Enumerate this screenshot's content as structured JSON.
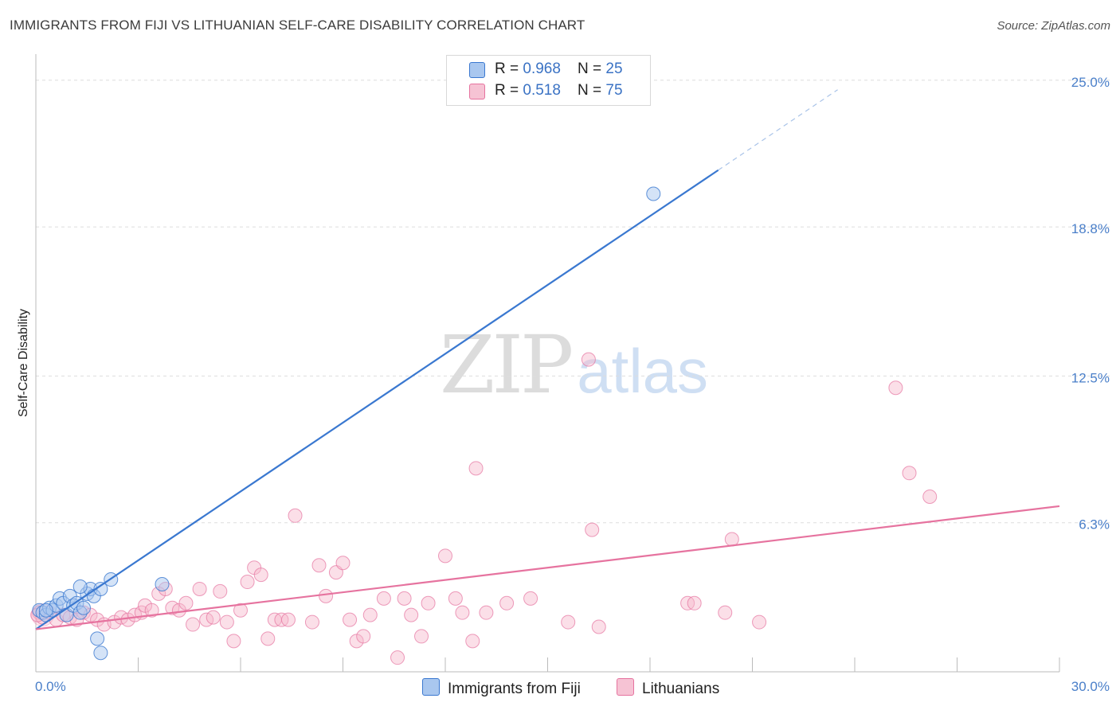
{
  "title": "IMMIGRANTS FROM FIJI VS LITHUANIAN SELF-CARE DISABILITY CORRELATION CHART",
  "source": "Source: ZipAtlas.com",
  "watermark": {
    "zip": "ZIP",
    "atlas": "atlas"
  },
  "legend": {
    "series1": {
      "r_label": "R = ",
      "r_value": "0.968",
      "n_label": "N = ",
      "n_value": "25"
    },
    "series2": {
      "r_label": "R = ",
      "r_value": "0.518",
      "n_label": "N = ",
      "n_value": "75"
    }
  },
  "chart_data": {
    "type": "scatter",
    "title": "IMMIGRANTS FROM FIJI VS LITHUANIAN SELF-CARE DISABILITY CORRELATION CHART",
    "xlabel": "",
    "ylabel": "Self-Care Disability",
    "xlim": [
      0,
      30
    ],
    "ylim": [
      0,
      25.7
    ],
    "x_tick_labels": [
      "0.0%",
      "30.0%"
    ],
    "y_ticks": [
      6.3,
      12.5,
      18.8,
      25.0
    ],
    "y_tick_labels": [
      "6.3%",
      "12.5%",
      "18.8%",
      "25.0%"
    ],
    "grid": true,
    "colors": {
      "fiji": "#3a78d0",
      "fiji_fill": "#a9c7ef",
      "lith": "#e6739f",
      "lith_fill": "#f6b9cd",
      "tick_text": "#4a7fc9"
    },
    "series": [
      {
        "name": "Immigrants from Fiji",
        "color": "#3a78d0",
        "trendline": {
          "x0": 0,
          "y0": 1.8,
          "x1": 20.0,
          "y1": 21.2,
          "dashed_to_x": 23.5,
          "dashed_to_y": 24.6
        },
        "points": [
          [
            0.1,
            2.6
          ],
          [
            0.2,
            2.5
          ],
          [
            0.3,
            2.4
          ],
          [
            0.4,
            2.7
          ],
          [
            0.5,
            2.6
          ],
          [
            0.6,
            2.8
          ],
          [
            0.7,
            3.1
          ],
          [
            0.8,
            2.9
          ],
          [
            0.9,
            2.4
          ],
          [
            1.0,
            3.2
          ],
          [
            1.1,
            2.8
          ],
          [
            1.2,
            2.9
          ],
          [
            1.3,
            2.5
          ],
          [
            1.4,
            2.7
          ],
          [
            1.5,
            3.3
          ],
          [
            1.6,
            3.5
          ],
          [
            1.7,
            3.2
          ],
          [
            1.9,
            3.5
          ],
          [
            2.2,
            3.9
          ],
          [
            1.8,
            1.4
          ],
          [
            1.9,
            0.8
          ],
          [
            3.7,
            3.7
          ],
          [
            1.3,
            3.6
          ],
          [
            0.3,
            2.6
          ],
          [
            18.1,
            20.2
          ]
        ]
      },
      {
        "name": "Lithuanians",
        "color": "#e6739f",
        "trendline": {
          "x0": 0,
          "y0": 1.8,
          "x1": 30.0,
          "y1": 7.0
        },
        "points": [
          [
            0.1,
            2.5
          ],
          [
            0.2,
            2.3
          ],
          [
            0.4,
            2.5
          ],
          [
            0.6,
            2.2
          ],
          [
            0.8,
            2.4
          ],
          [
            1.0,
            2.3
          ],
          [
            1.2,
            2.2
          ],
          [
            1.4,
            2.5
          ],
          [
            1.6,
            2.4
          ],
          [
            1.8,
            2.2
          ],
          [
            2.0,
            2.0
          ],
          [
            2.3,
            2.1
          ],
          [
            2.5,
            2.3
          ],
          [
            2.7,
            2.2
          ],
          [
            2.9,
            2.4
          ],
          [
            3.1,
            2.5
          ],
          [
            3.2,
            2.8
          ],
          [
            3.4,
            2.6
          ],
          [
            3.6,
            3.3
          ],
          [
            3.8,
            3.5
          ],
          [
            4.0,
            2.7
          ],
          [
            4.2,
            2.6
          ],
          [
            4.4,
            2.9
          ],
          [
            4.6,
            2.0
          ],
          [
            4.8,
            3.5
          ],
          [
            5.0,
            2.2
          ],
          [
            5.2,
            2.3
          ],
          [
            5.4,
            3.4
          ],
          [
            5.6,
            2.1
          ],
          [
            5.8,
            1.3
          ],
          [
            6.0,
            2.6
          ],
          [
            6.2,
            3.8
          ],
          [
            6.4,
            4.4
          ],
          [
            6.6,
            4.1
          ],
          [
            6.8,
            1.4
          ],
          [
            7.0,
            2.2
          ],
          [
            7.2,
            2.2
          ],
          [
            7.4,
            2.2
          ],
          [
            7.6,
            6.6
          ],
          [
            8.1,
            2.1
          ],
          [
            8.3,
            4.5
          ],
          [
            8.5,
            3.2
          ],
          [
            8.8,
            4.2
          ],
          [
            9.0,
            4.6
          ],
          [
            9.2,
            2.2
          ],
          [
            9.4,
            1.3
          ],
          [
            9.6,
            1.5
          ],
          [
            9.8,
            2.4
          ],
          [
            10.2,
            3.1
          ],
          [
            10.6,
            0.6
          ],
          [
            10.8,
            3.1
          ],
          [
            11.0,
            2.4
          ],
          [
            11.3,
            1.5
          ],
          [
            11.5,
            2.9
          ],
          [
            12.0,
            4.9
          ],
          [
            12.3,
            3.1
          ],
          [
            12.5,
            2.5
          ],
          [
            12.8,
            1.3
          ],
          [
            12.9,
            8.6
          ],
          [
            13.2,
            2.5
          ],
          [
            13.8,
            2.9
          ],
          [
            14.5,
            3.1
          ],
          [
            15.6,
            2.1
          ],
          [
            16.2,
            13.2
          ],
          [
            16.5,
            1.9
          ],
          [
            16.3,
            6.0
          ],
          [
            19.1,
            2.9
          ],
          [
            20.2,
            2.5
          ],
          [
            20.4,
            5.6
          ],
          [
            21.2,
            2.1
          ],
          [
            25.2,
            12.0
          ],
          [
            25.6,
            8.4
          ],
          [
            26.2,
            7.4
          ],
          [
            19.3,
            2.9
          ],
          [
            0.05,
            2.4
          ]
        ]
      }
    ]
  },
  "bottom_legend": {
    "series1": "Immigrants from Fiji",
    "series2": "Lithuanians"
  }
}
